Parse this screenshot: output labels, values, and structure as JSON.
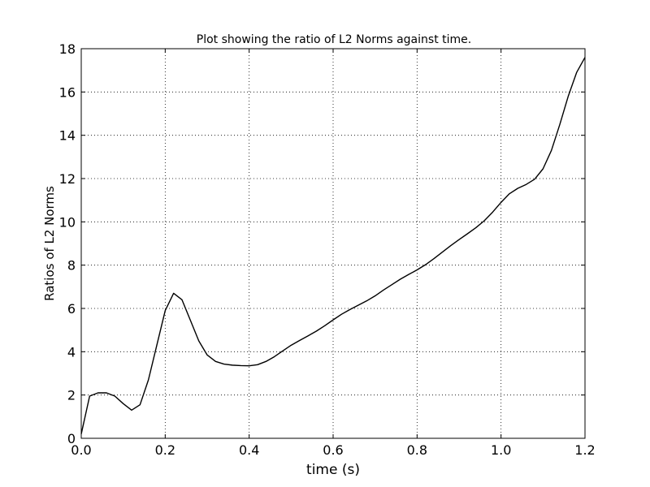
{
  "chart_data": {
    "type": "line",
    "title": "Plot showing the ratio of L2 Norms against time.",
    "xlabel": "time (s)",
    "ylabel": "Ratios of L2 Norms",
    "xlim": [
      0.0,
      1.2
    ],
    "ylim": [
      0,
      18
    ],
    "xticks": [
      "0.0",
      "0.2",
      "0.4",
      "0.6",
      "0.8",
      "1.0",
      "1.2"
    ],
    "yticks": [
      "0",
      "2",
      "4",
      "6",
      "8",
      "10",
      "12",
      "14",
      "16",
      "18"
    ],
    "grid": true,
    "grid_style": "dotted",
    "line_color": "#000000",
    "series": [
      {
        "x": [
          0.0,
          0.02,
          0.04,
          0.06,
          0.08,
          0.1,
          0.12,
          0.14,
          0.16,
          0.18,
          0.2,
          0.22,
          0.24,
          0.26,
          0.28,
          0.3,
          0.32,
          0.34,
          0.36,
          0.38,
          0.4,
          0.42,
          0.44,
          0.46,
          0.48,
          0.5,
          0.52,
          0.54,
          0.56,
          0.58,
          0.6,
          0.62,
          0.64,
          0.66,
          0.68,
          0.7,
          0.72,
          0.74,
          0.76,
          0.78,
          0.8,
          0.82,
          0.84,
          0.86,
          0.88,
          0.9,
          0.92,
          0.94,
          0.96,
          0.98,
          1.0,
          1.02,
          1.04,
          1.06,
          1.08,
          1.1,
          1.12,
          1.14,
          1.16,
          1.18,
          1.2
        ],
        "y": [
          0.2,
          1.95,
          2.1,
          2.1,
          1.95,
          1.6,
          1.3,
          1.55,
          2.7,
          4.3,
          5.9,
          6.7,
          6.4,
          5.45,
          4.5,
          3.85,
          3.55,
          3.43,
          3.38,
          3.36,
          3.35,
          3.4,
          3.55,
          3.77,
          4.04,
          4.3,
          4.52,
          4.73,
          4.95,
          5.2,
          5.47,
          5.73,
          5.95,
          6.15,
          6.35,
          6.58,
          6.85,
          7.1,
          7.35,
          7.57,
          7.78,
          8.02,
          8.3,
          8.6,
          8.9,
          9.18,
          9.45,
          9.73,
          10.05,
          10.45,
          10.9,
          11.3,
          11.55,
          11.73,
          11.97,
          12.45,
          13.3,
          14.5,
          15.8,
          16.9,
          17.6
        ]
      }
    ]
  }
}
